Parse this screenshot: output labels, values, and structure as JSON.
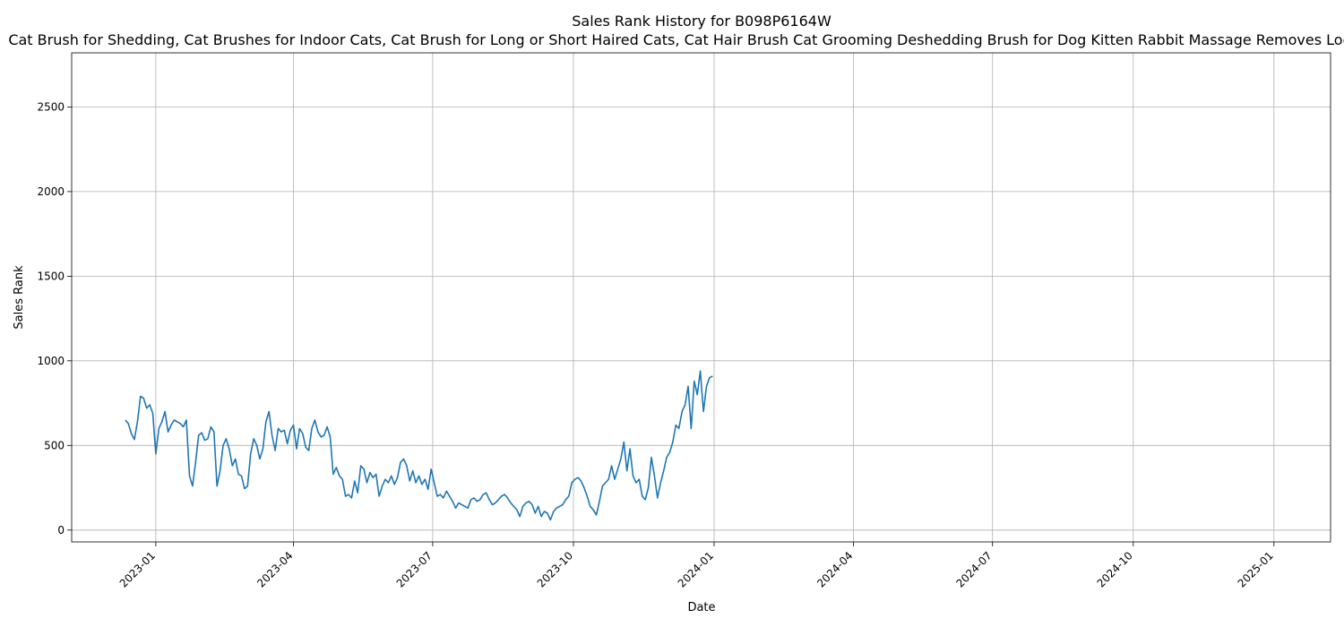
{
  "chart_data": {
    "type": "line",
    "title": "Sales Rank History for B098P6164W",
    "subtitle": "Cat Brush for Shedding, Cat Brushes for Indoor Cats, Cat Brush for Long or Short Haired Cats, Cat Hair Brush Cat Grooming Deshedding Brush for Dog Kitten Rabbit Massage Removes Loose Fur",
    "xlabel": "Date",
    "ylabel": "Sales Rank",
    "x_range": [
      "2022-11-07",
      "2025-02-07"
    ],
    "ylim": [
      -70,
      2820
    ],
    "grid": true,
    "x_ticks": [
      {
        "date": "2023-01-01",
        "label": "2023-01"
      },
      {
        "date": "2023-04-01",
        "label": "2023-04"
      },
      {
        "date": "2023-07-01",
        "label": "2023-07"
      },
      {
        "date": "2023-10-01",
        "label": "2023-10"
      },
      {
        "date": "2024-01-01",
        "label": "2024-01"
      },
      {
        "date": "2024-04-01",
        "label": "2024-04"
      },
      {
        "date": "2024-07-01",
        "label": "2024-07"
      },
      {
        "date": "2024-10-01",
        "label": "2024-10"
      },
      {
        "date": "2025-01-01",
        "label": "2025-01"
      }
    ],
    "y_ticks": [
      0,
      500,
      1000,
      1500,
      2000,
      2500
    ],
    "series": [
      {
        "color": "#1f77b4",
        "points": [
          [
            "2022-12-12",
            650
          ],
          [
            "2022-12-14",
            630
          ],
          [
            "2022-12-16",
            570
          ],
          [
            "2022-12-18",
            535
          ],
          [
            "2022-12-20",
            640
          ],
          [
            "2022-12-22",
            790
          ],
          [
            "2022-12-24",
            780
          ],
          [
            "2022-12-26",
            720
          ],
          [
            "2022-12-28",
            740
          ],
          [
            "2022-12-30",
            690
          ],
          [
            "2023-01-01",
            450
          ],
          [
            "2023-01-03",
            600
          ],
          [
            "2023-01-05",
            640
          ],
          [
            "2023-01-07",
            700
          ],
          [
            "2023-01-09",
            580
          ],
          [
            "2023-01-11",
            620
          ],
          [
            "2023-01-13",
            650
          ],
          [
            "2023-01-15",
            640
          ],
          [
            "2023-01-17",
            630
          ],
          [
            "2023-01-19",
            610
          ],
          [
            "2023-01-21",
            650
          ],
          [
            "2023-01-23",
            320
          ],
          [
            "2023-01-25",
            260
          ],
          [
            "2023-01-27",
            400
          ],
          [
            "2023-01-29",
            560
          ],
          [
            "2023-01-31",
            575
          ],
          [
            "2023-02-02",
            530
          ],
          [
            "2023-02-04",
            540
          ],
          [
            "2023-02-06",
            610
          ],
          [
            "2023-02-08",
            580
          ],
          [
            "2023-02-10",
            260
          ],
          [
            "2023-02-12",
            350
          ],
          [
            "2023-02-14",
            500
          ],
          [
            "2023-02-16",
            540
          ],
          [
            "2023-02-18",
            480
          ],
          [
            "2023-02-20",
            380
          ],
          [
            "2023-02-22",
            420
          ],
          [
            "2023-02-24",
            330
          ],
          [
            "2023-02-26",
            320
          ],
          [
            "2023-02-28",
            245
          ],
          [
            "2023-03-02",
            260
          ],
          [
            "2023-03-04",
            450
          ],
          [
            "2023-03-06",
            540
          ],
          [
            "2023-03-08",
            500
          ],
          [
            "2023-03-10",
            420
          ],
          [
            "2023-03-12",
            480
          ],
          [
            "2023-03-14",
            640
          ],
          [
            "2023-03-16",
            700
          ],
          [
            "2023-03-18",
            560
          ],
          [
            "2023-03-20",
            470
          ],
          [
            "2023-03-22",
            600
          ],
          [
            "2023-03-24",
            580
          ],
          [
            "2023-03-26",
            590
          ],
          [
            "2023-03-28",
            510
          ],
          [
            "2023-03-30",
            590
          ],
          [
            "2023-04-01",
            620
          ],
          [
            "2023-04-03",
            480
          ],
          [
            "2023-04-05",
            600
          ],
          [
            "2023-04-07",
            570
          ],
          [
            "2023-04-09",
            490
          ],
          [
            "2023-04-11",
            470
          ],
          [
            "2023-04-13",
            600
          ],
          [
            "2023-04-15",
            650
          ],
          [
            "2023-04-17",
            580
          ],
          [
            "2023-04-19",
            550
          ],
          [
            "2023-04-21",
            560
          ],
          [
            "2023-04-23",
            610
          ],
          [
            "2023-04-25",
            550
          ],
          [
            "2023-04-27",
            330
          ],
          [
            "2023-04-29",
            370
          ],
          [
            "2023-05-01",
            320
          ],
          [
            "2023-05-03",
            300
          ],
          [
            "2023-05-05",
            200
          ],
          [
            "2023-05-07",
            210
          ],
          [
            "2023-05-09",
            190
          ],
          [
            "2023-05-11",
            290
          ],
          [
            "2023-05-13",
            220
          ],
          [
            "2023-05-15",
            380
          ],
          [
            "2023-05-17",
            360
          ],
          [
            "2023-05-19",
            280
          ],
          [
            "2023-05-21",
            340
          ],
          [
            "2023-05-23",
            310
          ],
          [
            "2023-05-25",
            330
          ],
          [
            "2023-05-27",
            200
          ],
          [
            "2023-05-29",
            260
          ],
          [
            "2023-05-31",
            300
          ],
          [
            "2023-06-02",
            280
          ],
          [
            "2023-06-04",
            320
          ],
          [
            "2023-06-06",
            270
          ],
          [
            "2023-06-08",
            310
          ],
          [
            "2023-06-10",
            400
          ],
          [
            "2023-06-12",
            420
          ],
          [
            "2023-06-14",
            380
          ],
          [
            "2023-06-16",
            290
          ],
          [
            "2023-06-18",
            350
          ],
          [
            "2023-06-20",
            280
          ],
          [
            "2023-06-22",
            320
          ],
          [
            "2023-06-24",
            270
          ],
          [
            "2023-06-26",
            300
          ],
          [
            "2023-06-28",
            240
          ],
          [
            "2023-06-30",
            360
          ],
          [
            "2023-07-02",
            280
          ],
          [
            "2023-07-04",
            200
          ],
          [
            "2023-07-06",
            210
          ],
          [
            "2023-07-08",
            190
          ],
          [
            "2023-07-10",
            230
          ],
          [
            "2023-07-12",
            200
          ],
          [
            "2023-07-14",
            170
          ],
          [
            "2023-07-16",
            130
          ],
          [
            "2023-07-18",
            160
          ],
          [
            "2023-07-20",
            150
          ],
          [
            "2023-07-22",
            140
          ],
          [
            "2023-07-24",
            130
          ],
          [
            "2023-07-26",
            180
          ],
          [
            "2023-07-28",
            190
          ],
          [
            "2023-07-30",
            170
          ],
          [
            "2023-08-01",
            180
          ],
          [
            "2023-08-03",
            210
          ],
          [
            "2023-08-05",
            220
          ],
          [
            "2023-08-07",
            180
          ],
          [
            "2023-08-09",
            150
          ],
          [
            "2023-08-11",
            160
          ],
          [
            "2023-08-13",
            180
          ],
          [
            "2023-08-15",
            200
          ],
          [
            "2023-08-17",
            210
          ],
          [
            "2023-08-19",
            190
          ],
          [
            "2023-08-21",
            160
          ],
          [
            "2023-08-23",
            140
          ],
          [
            "2023-08-25",
            120
          ],
          [
            "2023-08-27",
            80
          ],
          [
            "2023-08-29",
            140
          ],
          [
            "2023-08-31",
            160
          ],
          [
            "2023-09-02",
            170
          ],
          [
            "2023-09-04",
            150
          ],
          [
            "2023-09-06",
            100
          ],
          [
            "2023-09-08",
            140
          ],
          [
            "2023-09-10",
            80
          ],
          [
            "2023-09-12",
            110
          ],
          [
            "2023-09-14",
            100
          ],
          [
            "2023-09-16",
            60
          ],
          [
            "2023-09-18",
            110
          ],
          [
            "2023-09-20",
            130
          ],
          [
            "2023-09-22",
            140
          ],
          [
            "2023-09-24",
            150
          ],
          [
            "2023-09-26",
            180
          ],
          [
            "2023-09-28",
            200
          ],
          [
            "2023-09-30",
            280
          ],
          [
            "2023-10-02",
            300
          ],
          [
            "2023-10-04",
            310
          ],
          [
            "2023-10-06",
            290
          ],
          [
            "2023-10-08",
            250
          ],
          [
            "2023-10-10",
            200
          ],
          [
            "2023-10-12",
            140
          ],
          [
            "2023-10-14",
            120
          ],
          [
            "2023-10-16",
            90
          ],
          [
            "2023-10-18",
            170
          ],
          [
            "2023-10-20",
            260
          ],
          [
            "2023-10-22",
            280
          ],
          [
            "2023-10-24",
            300
          ],
          [
            "2023-10-26",
            380
          ],
          [
            "2023-10-28",
            300
          ],
          [
            "2023-10-30",
            360
          ],
          [
            "2023-11-01",
            420
          ],
          [
            "2023-11-03",
            520
          ],
          [
            "2023-11-05",
            350
          ],
          [
            "2023-11-07",
            480
          ],
          [
            "2023-11-09",
            320
          ],
          [
            "2023-11-11",
            280
          ],
          [
            "2023-11-13",
            300
          ],
          [
            "2023-11-15",
            200
          ],
          [
            "2023-11-17",
            180
          ],
          [
            "2023-11-19",
            250
          ],
          [
            "2023-11-21",
            430
          ],
          [
            "2023-11-23",
            320
          ],
          [
            "2023-11-25",
            190
          ],
          [
            "2023-11-27",
            280
          ],
          [
            "2023-11-29",
            350
          ],
          [
            "2023-12-01",
            430
          ],
          [
            "2023-12-03",
            460
          ],
          [
            "2023-12-05",
            520
          ],
          [
            "2023-12-07",
            620
          ],
          [
            "2023-12-09",
            600
          ],
          [
            "2023-12-11",
            700
          ],
          [
            "2023-12-13",
            740
          ],
          [
            "2023-12-15",
            850
          ],
          [
            "2023-12-17",
            600
          ],
          [
            "2023-12-19",
            880
          ],
          [
            "2023-12-21",
            800
          ],
          [
            "2023-12-23",
            940
          ],
          [
            "2023-12-25",
            700
          ],
          [
            "2023-12-27",
            850
          ],
          [
            "2023-12-29",
            900
          ],
          [
            "2023-12-31",
            910
          ]
        ]
      }
    ]
  }
}
